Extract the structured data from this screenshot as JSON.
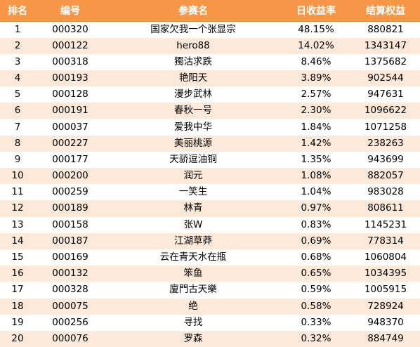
{
  "table": {
    "headers": [
      "排名",
      "编号",
      "参赛名",
      "日收益率",
      "结算权益"
    ],
    "rows": [
      [
        "1",
        "000320",
        "国家欠我一个张显宗",
        "48.15%",
        "880821"
      ],
      [
        "2",
        "000122",
        "hero88",
        "14.02%",
        "1343147"
      ],
      [
        "3",
        "000318",
        "獨沽求跌",
        "8.46%",
        "1375682"
      ],
      [
        "4",
        "000193",
        "艳阳天",
        "3.89%",
        "902544"
      ],
      [
        "5",
        "000128",
        "漫步武林",
        "2.57%",
        "947631"
      ],
      [
        "6",
        "000191",
        "春秋一号",
        "2.30%",
        "1096622"
      ],
      [
        "7",
        "000037",
        "爱我中华",
        "1.84%",
        "1071258"
      ],
      [
        "8",
        "000227",
        "美丽桃源",
        "1.42%",
        "238263"
      ],
      [
        "9",
        "000177",
        "天骄逗油铜",
        "1.35%",
        "943699"
      ],
      [
        "10",
        "000200",
        "润元",
        "1.08%",
        "882057"
      ],
      [
        "11",
        "000259",
        "一笑生",
        "1.04%",
        "983028"
      ],
      [
        "12",
        "000189",
        "林青",
        "0.97%",
        "808611"
      ],
      [
        "13",
        "000158",
        "张W",
        "0.83%",
        "1145231"
      ],
      [
        "14",
        "000187",
        "江湖草莽",
        "0.69%",
        "778314"
      ],
      [
        "15",
        "000169",
        "云在青天水在瓶",
        "0.68%",
        "1060804"
      ],
      [
        "16",
        "000132",
        "笨鱼",
        "0.65%",
        "1034395"
      ],
      [
        "17",
        "000328",
        "廈門古天樂",
        "0.59%",
        "1005915"
      ],
      [
        "18",
        "000075",
        "绝",
        "0.58%",
        "728924"
      ],
      [
        "19",
        "000256",
        "寻找",
        "0.33%",
        "948370"
      ],
      [
        "20",
        "000076",
        "罗森",
        "0.32%",
        "884749"
      ]
    ]
  },
  "colors": {
    "header_bg": "#f79646",
    "header_text": "#ffffff",
    "stripe_bg": "#fde9d9",
    "row_bg": "#ffffff"
  }
}
